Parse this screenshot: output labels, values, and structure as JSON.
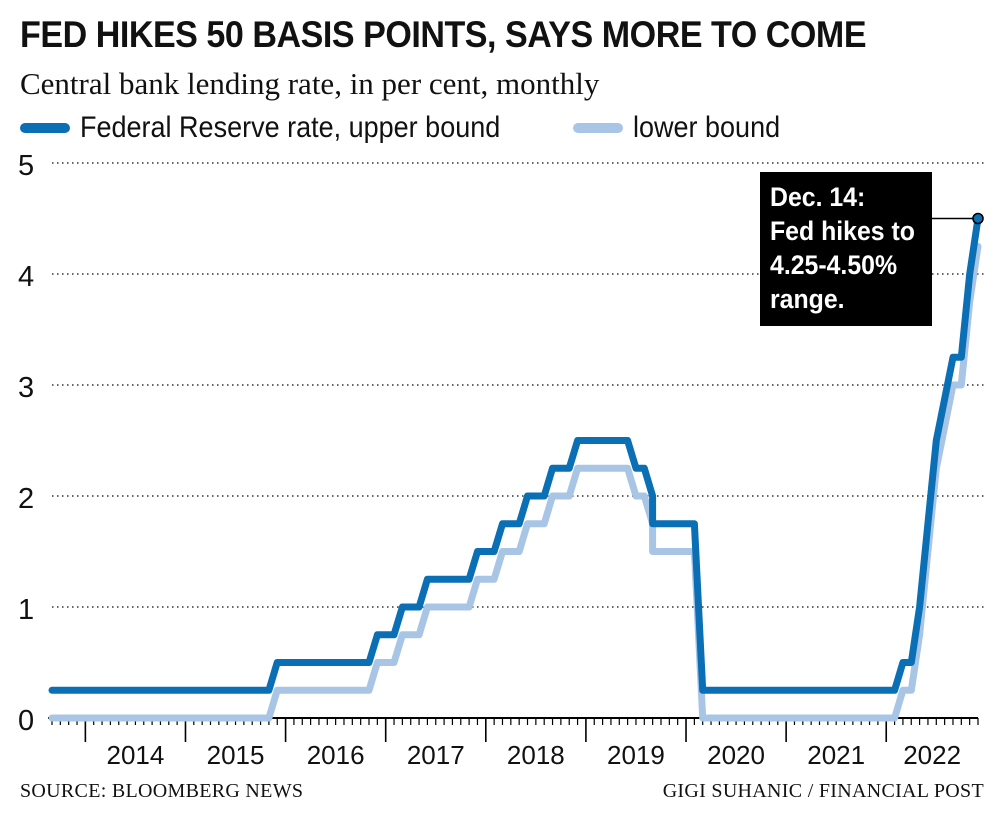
{
  "title": "FED HIKES 50 BASIS POINTS, SAYS MORE TO COME",
  "subtitle": "Central bank lending rate, in per cent, monthly",
  "source": "SOURCE: BLOOMBERG NEWS",
  "credit": "GIGI SUHANIC / FINANCIAL POST",
  "annotation": {
    "lines": [
      "Dec. 14:",
      "Fed hikes to",
      "4.25-4.50%",
      "range."
    ]
  },
  "colors": {
    "upper": "#0a6fb5",
    "lower": "#a9c5e6",
    "grid": "#333333",
    "annotation_bg": "#000000"
  },
  "chart_data": {
    "type": "line",
    "title": "FED HIKES 50 BASIS POINTS, SAYS MORE TO COME",
    "subtitle": "Central bank lending rate, in per cent, monthly",
    "xlabel": "",
    "ylabel": "",
    "ylim": [
      0,
      5
    ],
    "xlim": [
      "2013-09",
      "2022-12"
    ],
    "yticks": [
      "0",
      "1",
      "2",
      "3",
      "4",
      "5"
    ],
    "xticks": [
      "2014",
      "2015",
      "2016",
      "2017",
      "2018",
      "2019",
      "2020",
      "2021",
      "2022"
    ],
    "grid": "horizontal dotted",
    "legend_position": "top-left",
    "series": [
      {
        "name": "Federal Reserve rate, upper bound",
        "values": [
          [
            "2013-09",
            0.25
          ],
          [
            "2015-11",
            0.25
          ],
          [
            "2015-12",
            0.5
          ],
          [
            "2016-11",
            0.5
          ],
          [
            "2016-12",
            0.75
          ],
          [
            "2017-02",
            0.75
          ],
          [
            "2017-03",
            1.0
          ],
          [
            "2017-05",
            1.0
          ],
          [
            "2017-06",
            1.25
          ],
          [
            "2017-11",
            1.25
          ],
          [
            "2017-12",
            1.5
          ],
          [
            "2018-02",
            1.5
          ],
          [
            "2018-03",
            1.75
          ],
          [
            "2018-05",
            1.75
          ],
          [
            "2018-06",
            2.0
          ],
          [
            "2018-08",
            2.0
          ],
          [
            "2018-09",
            2.25
          ],
          [
            "2018-11",
            2.25
          ],
          [
            "2018-12",
            2.5
          ],
          [
            "2019-06",
            2.5
          ],
          [
            "2019-07",
            2.25
          ],
          [
            "2019-08",
            2.25
          ],
          [
            "2019-09",
            2.0
          ],
          [
            "2019-09",
            1.75
          ],
          [
            "2020-02",
            1.75
          ],
          [
            "2020-03",
            0.25
          ],
          [
            "2022-02",
            0.25
          ],
          [
            "2022-03",
            0.5
          ],
          [
            "2022-04",
            0.5
          ],
          [
            "2022-05",
            1.0
          ],
          [
            "2022-06",
            1.75
          ],
          [
            "2022-07",
            2.5
          ],
          [
            "2022-09",
            3.25
          ],
          [
            "2022-10",
            3.25
          ],
          [
            "2022-11",
            4.0
          ],
          [
            "2022-12",
            4.5
          ]
        ]
      },
      {
        "name": "lower bound",
        "values": [
          [
            "2013-09",
            0.0
          ],
          [
            "2015-11",
            0.0
          ],
          [
            "2015-12",
            0.25
          ],
          [
            "2016-11",
            0.25
          ],
          [
            "2016-12",
            0.5
          ],
          [
            "2017-02",
            0.5
          ],
          [
            "2017-03",
            0.75
          ],
          [
            "2017-05",
            0.75
          ],
          [
            "2017-06",
            1.0
          ],
          [
            "2017-11",
            1.0
          ],
          [
            "2017-12",
            1.25
          ],
          [
            "2018-02",
            1.25
          ],
          [
            "2018-03",
            1.5
          ],
          [
            "2018-05",
            1.5
          ],
          [
            "2018-06",
            1.75
          ],
          [
            "2018-08",
            1.75
          ],
          [
            "2018-09",
            2.0
          ],
          [
            "2018-11",
            2.0
          ],
          [
            "2018-12",
            2.25
          ],
          [
            "2019-06",
            2.25
          ],
          [
            "2019-07",
            2.0
          ],
          [
            "2019-08",
            2.0
          ],
          [
            "2019-09",
            1.75
          ],
          [
            "2019-09",
            1.5
          ],
          [
            "2020-02",
            1.5
          ],
          [
            "2020-03",
            0.0
          ],
          [
            "2022-02",
            0.0
          ],
          [
            "2022-03",
            0.25
          ],
          [
            "2022-04",
            0.25
          ],
          [
            "2022-05",
            0.75
          ],
          [
            "2022-06",
            1.5
          ],
          [
            "2022-07",
            2.25
          ],
          [
            "2022-09",
            3.0
          ],
          [
            "2022-10",
            3.0
          ],
          [
            "2022-11",
            3.75
          ],
          [
            "2022-12",
            4.25
          ]
        ]
      }
    ],
    "annotations": [
      {
        "x": "2022-12",
        "y": 4.5,
        "text": "Dec. 14: Fed hikes to 4.25-4.50% range."
      }
    ]
  }
}
